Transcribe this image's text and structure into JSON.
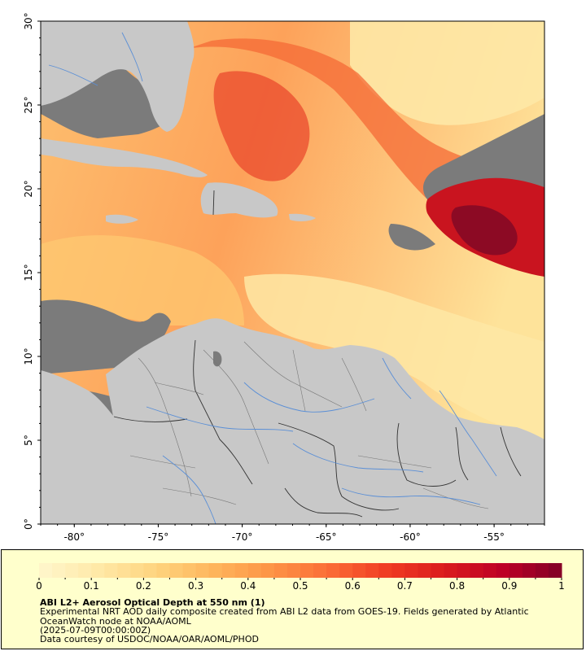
{
  "map": {
    "lat_ticks": [
      "0°",
      "5°",
      "10°",
      "15°",
      "20°",
      "25°",
      "30°"
    ],
    "lon_ticks": [
      "-80°",
      "-75°",
      "-70°",
      "-65°",
      "-60°",
      "-55°"
    ],
    "extent": {
      "lon_min": -82,
      "lon_max": -52,
      "lat_min": 0,
      "lat_max": 30
    },
    "colors": {
      "land": "#c8c8c8",
      "nodata": "#7b7b7b",
      "rivers": "#5b8fd6",
      "borders": "#555555"
    }
  },
  "legend": {
    "title": "ABI L2+ Aerosol Optical Depth at 550 nm (1)",
    "description": "Experimental NRT AOD daily composite created from ABI L2 data from GOES-19. Fields generated by Atlantic OceanWatch node at NOAA/AOML",
    "date": "(2025-07-09T00:00:00Z)",
    "credit": "Data courtesy of USDOC/NOAA/OAR/AOML/PHOD",
    "colorbar_ticks": [
      "0",
      "0.1",
      "0.2",
      "0.3",
      "0.4",
      "0.5",
      "0.6",
      "0.7",
      "0.8",
      "0.9",
      "1"
    ],
    "colorbar_range": [
      0,
      1
    ],
    "colorscale": [
      "#fff7cc",
      "#ffe9a8",
      "#fed47f",
      "#feb55c",
      "#fd9446",
      "#fb6c36",
      "#f03b23",
      "#da1b1d",
      "#bd0026",
      "#800026"
    ]
  }
}
